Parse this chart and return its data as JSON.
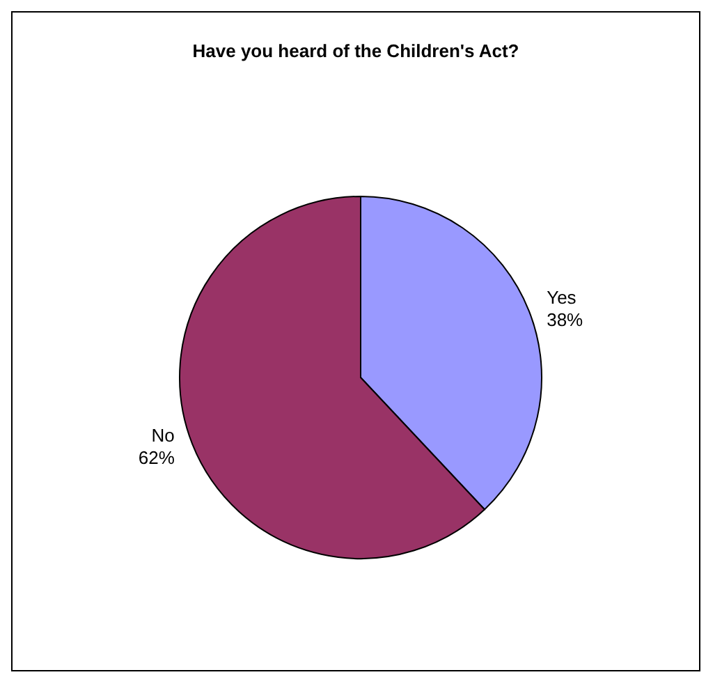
{
  "chart_data": {
    "type": "pie",
    "title": "Have you heard of the Children's Act?",
    "categories": [
      "Yes",
      "No"
    ],
    "values": [
      38,
      62
    ],
    "colors": [
      "#9999ff",
      "#993366"
    ],
    "value_labels": [
      "38%",
      "62%"
    ],
    "legend": false
  }
}
